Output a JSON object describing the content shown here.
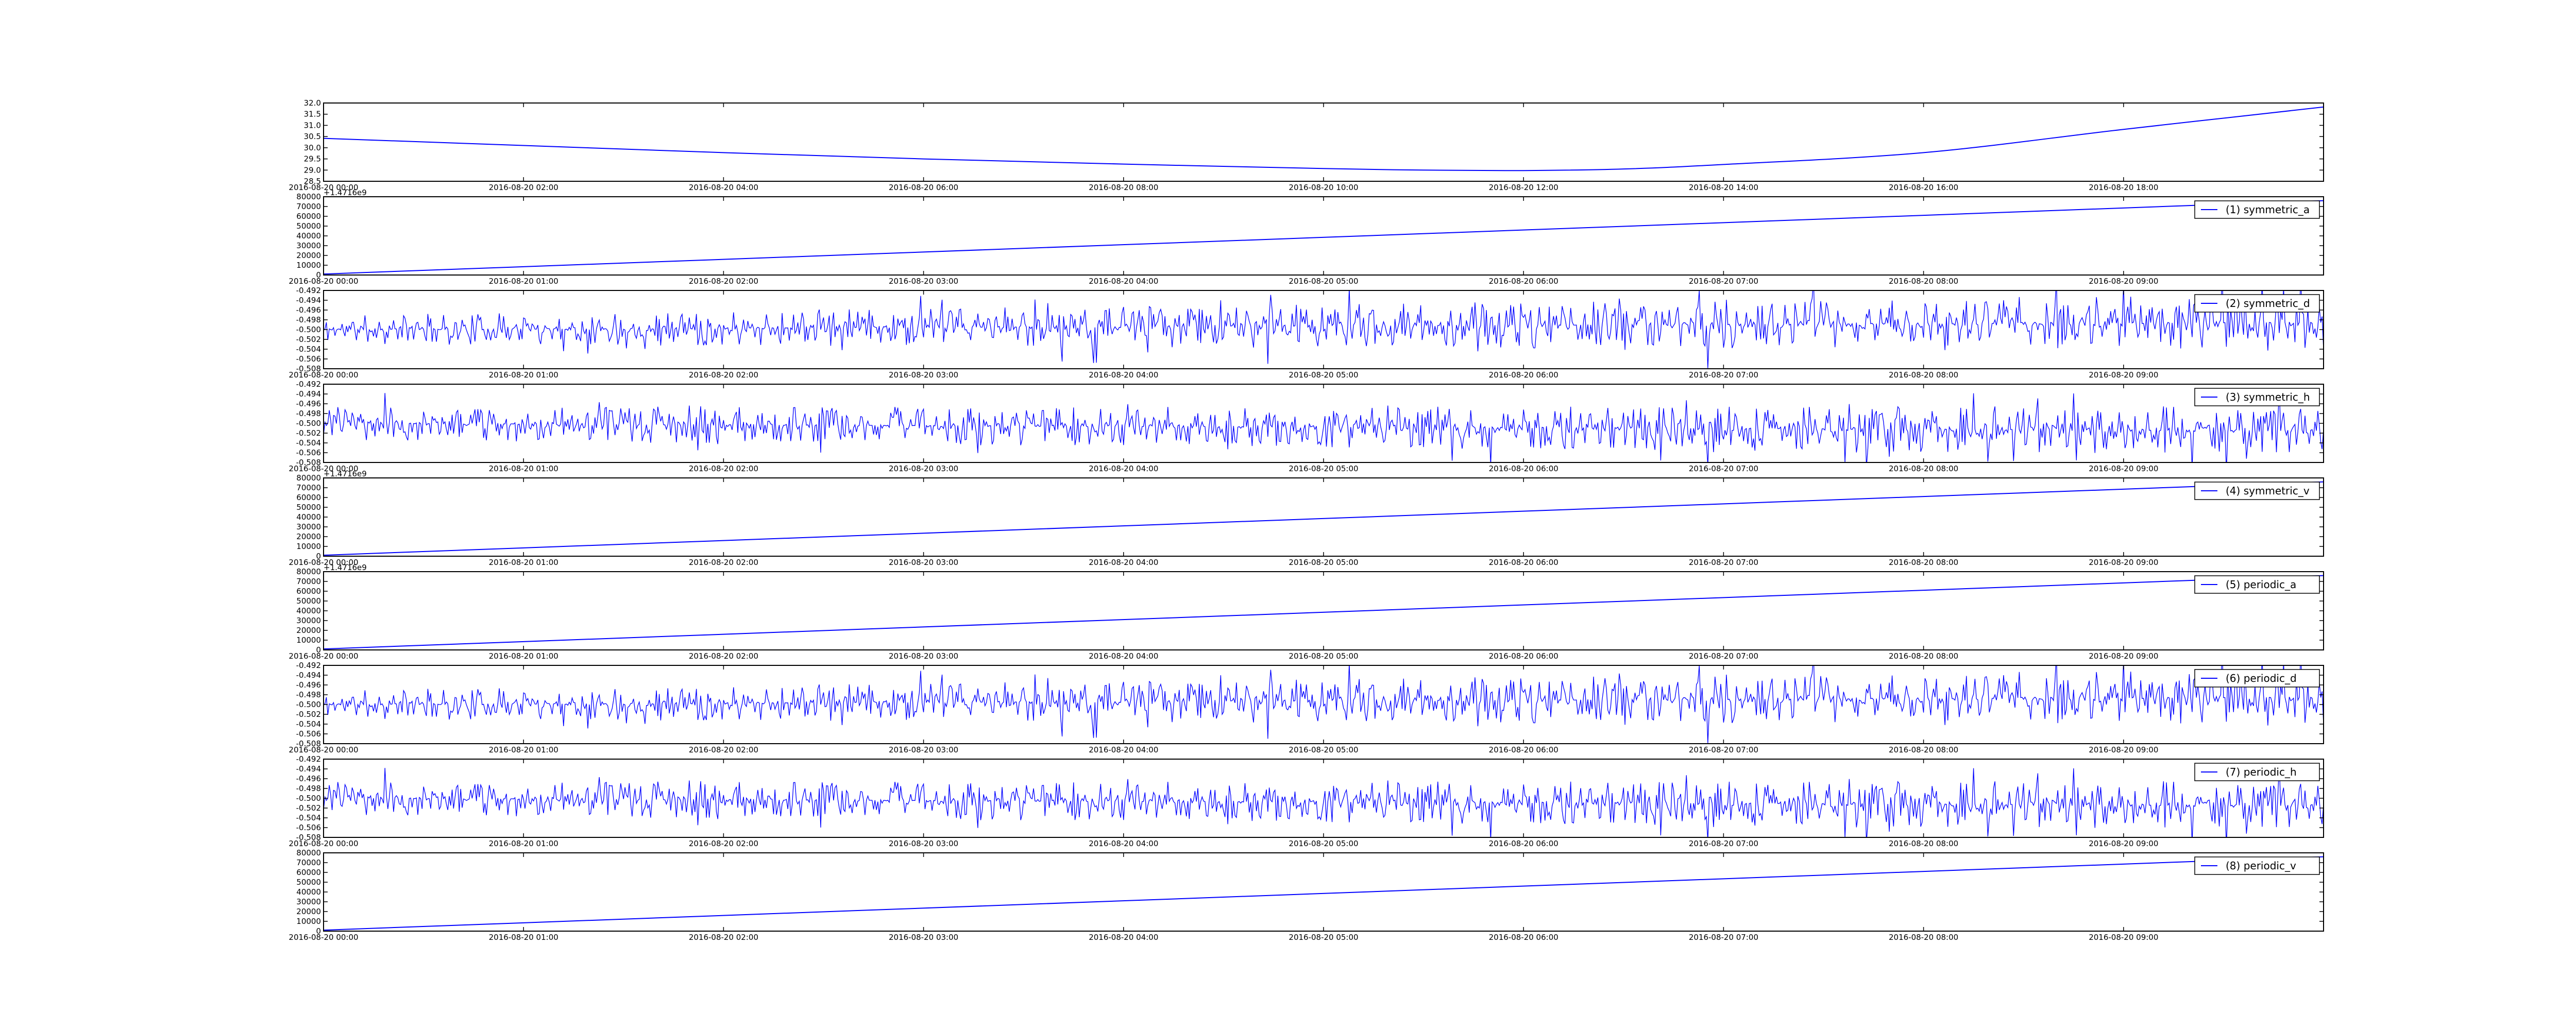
{
  "figure": {
    "background": "#ffffff",
    "series_color": "#0000ff",
    "axes_color": "#000000"
  },
  "chart_data": [
    {
      "type": "line",
      "legend": null,
      "x_ticks": [
        "2016-08-20 00:00",
        "2016-08-20 02:00",
        "2016-08-20 04:00",
        "2016-08-20 06:00",
        "2016-08-20 08:00",
        "2016-08-20 10:00",
        "2016-08-20 12:00",
        "2016-08-20 14:00",
        "2016-08-20 16:00",
        "2016-08-20 18:00"
      ],
      "xlim_hours": [
        0,
        20
      ],
      "ylim": [
        28.5,
        32.0
      ],
      "y_ticks": [
        "28.5",
        "29.0",
        "29.5",
        "30.0",
        "30.5",
        "31.0",
        "31.5",
        "32.0"
      ],
      "offset_label": "",
      "curve": "smooth",
      "series": [
        {
          "x_hours": [
            0,
            2,
            4,
            6,
            8,
            10,
            11,
            12,
            13,
            14,
            16,
            18,
            20
          ],
          "y": [
            30.42,
            30.1,
            29.78,
            29.5,
            29.27,
            29.07,
            29.0,
            28.98,
            29.05,
            29.25,
            29.78,
            30.82,
            31.82
          ]
        }
      ]
    },
    {
      "type": "line",
      "legend": "(1) symmetric_a",
      "x_ticks": [
        "2016-08-20 00:00",
        "2016-08-20 01:00",
        "2016-08-20 02:00",
        "2016-08-20 03:00",
        "2016-08-20 04:00",
        "2016-08-20 05:00",
        "2016-08-20 06:00",
        "2016-08-20 07:00",
        "2016-08-20 08:00",
        "2016-08-20 09:00"
      ],
      "xlim_hours": [
        0,
        10
      ],
      "ylim": [
        0,
        80000
      ],
      "y_ticks": [
        "0",
        "10000",
        "20000",
        "30000",
        "40000",
        "50000",
        "60000",
        "70000",
        "80000"
      ],
      "offset_label": "+1.4716e9",
      "series": [
        {
          "x_hours": [
            0,
            10
          ],
          "y": [
            1000,
            76000
          ]
        }
      ]
    },
    {
      "type": "line",
      "legend": "(2) symmetric_d",
      "x_ticks": [
        "2016-08-20 00:00",
        "2016-08-20 01:00",
        "2016-08-20 02:00",
        "2016-08-20 03:00",
        "2016-08-20 04:00",
        "2016-08-20 05:00",
        "2016-08-20 06:00",
        "2016-08-20 07:00",
        "2016-08-20 08:00",
        "2016-08-20 09:00"
      ],
      "xlim_hours": [
        0,
        10
      ],
      "ylim": [
        -0.508,
        -0.492
      ],
      "y_ticks": [
        "-0.508",
        "-0.506",
        "-0.504",
        "-0.502",
        "-0.500",
        "-0.498",
        "-0.496",
        "-0.494",
        "-0.492"
      ],
      "offset_label": "",
      "noise": {
        "center": -0.5,
        "amplitude_start": 0.003,
        "amplitude_end": 0.006,
        "bias_end": 0.0015,
        "seed": 11,
        "samples": 1400
      }
    },
    {
      "type": "line",
      "legend": "(3) symmetric_h",
      "x_ticks": [
        "2016-08-20 00:00",
        "2016-08-20 01:00",
        "2016-08-20 02:00",
        "2016-08-20 03:00",
        "2016-08-20 04:00",
        "2016-08-20 05:00",
        "2016-08-20 06:00",
        "2016-08-20 07:00",
        "2016-08-20 08:00",
        "2016-08-20 09:00"
      ],
      "xlim_hours": [
        0,
        10
      ],
      "ylim": [
        -0.508,
        -0.492
      ],
      "y_ticks": [
        "-0.508",
        "-0.506",
        "-0.504",
        "-0.502",
        "-0.500",
        "-0.498",
        "-0.496",
        "-0.494",
        "-0.492"
      ],
      "offset_label": "",
      "noise": {
        "center": -0.5,
        "amplitude_start": 0.0035,
        "amplitude_end": 0.005,
        "bias_end": -0.0015,
        "seed": 23,
        "samples": 1400
      }
    },
    {
      "type": "line",
      "legend": "(4) symmetric_v",
      "x_ticks": [
        "2016-08-20 00:00",
        "2016-08-20 01:00",
        "2016-08-20 02:00",
        "2016-08-20 03:00",
        "2016-08-20 04:00",
        "2016-08-20 05:00",
        "2016-08-20 06:00",
        "2016-08-20 07:00",
        "2016-08-20 08:00",
        "2016-08-20 09:00"
      ],
      "xlim_hours": [
        0,
        10
      ],
      "ylim": [
        0,
        80000
      ],
      "y_ticks": [
        "0",
        "10000",
        "20000",
        "30000",
        "40000",
        "50000",
        "60000",
        "70000",
        "80000"
      ],
      "offset_label": "+1.4716e9",
      "series": [
        {
          "x_hours": [
            0,
            10
          ],
          "y": [
            1000,
            76000
          ]
        }
      ]
    },
    {
      "type": "line",
      "legend": "(5) periodic_a",
      "x_ticks": [
        "2016-08-20 00:00",
        "2016-08-20 01:00",
        "2016-08-20 02:00",
        "2016-08-20 03:00",
        "2016-08-20 04:00",
        "2016-08-20 05:00",
        "2016-08-20 06:00",
        "2016-08-20 07:00",
        "2016-08-20 08:00",
        "2016-08-20 09:00"
      ],
      "xlim_hours": [
        0,
        10
      ],
      "ylim": [
        0,
        80000
      ],
      "y_ticks": [
        "0",
        "10000",
        "20000",
        "30000",
        "40000",
        "50000",
        "60000",
        "70000",
        "80000"
      ],
      "offset_label": "+1.4716e9",
      "series": [
        {
          "x_hours": [
            0,
            10
          ],
          "y": [
            1000,
            76000
          ]
        }
      ]
    },
    {
      "type": "line",
      "legend": "(6) periodic_d",
      "x_ticks": [
        "2016-08-20 00:00",
        "2016-08-20 01:00",
        "2016-08-20 02:00",
        "2016-08-20 03:00",
        "2016-08-20 04:00",
        "2016-08-20 05:00",
        "2016-08-20 06:00",
        "2016-08-20 07:00",
        "2016-08-20 08:00",
        "2016-08-20 09:00"
      ],
      "xlim_hours": [
        0,
        10
      ],
      "ylim": [
        -0.508,
        -0.492
      ],
      "y_ticks": [
        "-0.508",
        "-0.506",
        "-0.504",
        "-0.502",
        "-0.500",
        "-0.498",
        "-0.496",
        "-0.494",
        "-0.492"
      ],
      "offset_label": "",
      "noise": {
        "center": -0.5,
        "amplitude_start": 0.003,
        "amplitude_end": 0.006,
        "bias_end": 0.0015,
        "seed": 11,
        "samples": 1400
      }
    },
    {
      "type": "line",
      "legend": "(7) periodic_h",
      "x_ticks": [
        "2016-08-20 00:00",
        "2016-08-20 01:00",
        "2016-08-20 02:00",
        "2016-08-20 03:00",
        "2016-08-20 04:00",
        "2016-08-20 05:00",
        "2016-08-20 06:00",
        "2016-08-20 07:00",
        "2016-08-20 08:00",
        "2016-08-20 09:00"
      ],
      "xlim_hours": [
        0,
        10
      ],
      "ylim": [
        -0.508,
        -0.492
      ],
      "y_ticks": [
        "-0.508",
        "-0.506",
        "-0.504",
        "-0.502",
        "-0.500",
        "-0.498",
        "-0.496",
        "-0.494",
        "-0.492"
      ],
      "offset_label": "",
      "noise": {
        "center": -0.5,
        "amplitude_start": 0.0035,
        "amplitude_end": 0.005,
        "bias_end": -0.0015,
        "seed": 23,
        "samples": 1400
      }
    },
    {
      "type": "line",
      "legend": "(8) periodic_v",
      "x_ticks": [
        "2016-08-20 00:00",
        "2016-08-20 01:00",
        "2016-08-20 02:00",
        "2016-08-20 03:00",
        "2016-08-20 04:00",
        "2016-08-20 05:00",
        "2016-08-20 06:00",
        "2016-08-20 07:00",
        "2016-08-20 08:00",
        "2016-08-20 09:00"
      ],
      "xlim_hours": [
        0,
        10
      ],
      "ylim": [
        0,
        80000
      ],
      "y_ticks": [
        "0",
        "10000",
        "20000",
        "30000",
        "40000",
        "50000",
        "60000",
        "70000",
        "80000"
      ],
      "offset_label": "",
      "series": [
        {
          "x_hours": [
            0,
            10
          ],
          "y": [
            1000,
            76000
          ]
        }
      ]
    }
  ]
}
